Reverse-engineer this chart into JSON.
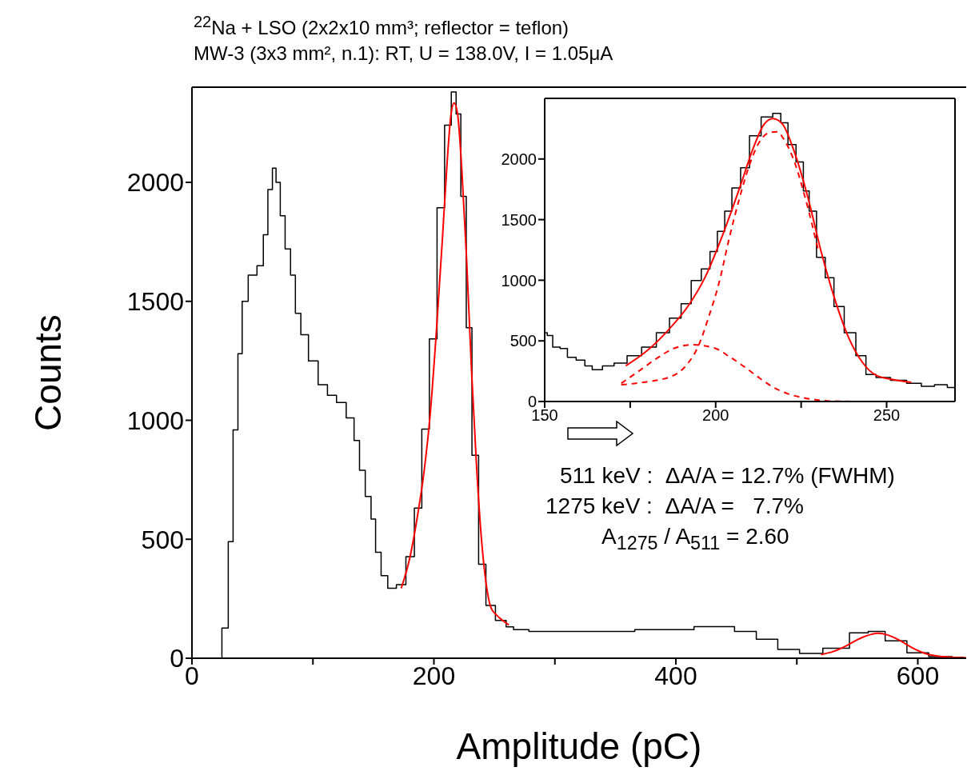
{
  "chart_data": [
    {
      "type": "step",
      "title": "$^{22}$Na + LSO (2x2x10 mm³; reflector = teflon)",
      "subtitle": "MW-3 (3x3 mm², n.1):  RT, U = 138.0V,  I = 1.05μA",
      "xlabel": "Amplitude (pC)",
      "ylabel": "Counts",
      "xlim": [
        0,
        640
      ],
      "ylim": [
        0,
        2400
      ],
      "xticks": [
        0,
        {
          "value": 100,
          "label": null
        },
        200,
        {
          "value": 300,
          "label": null
        },
        400,
        {
          "value": 500,
          "label": null
        },
        600
      ],
      "yticks": [
        0,
        500,
        1000,
        1500,
        2000
      ],
      "series": [
        {
          "color": "#000000",
          "x": [
            0,
            21.5,
            28,
            32,
            36,
            40,
            43,
            50,
            57.5,
            60.5,
            65,
            68,
            71,
            75,
            79,
            84,
            87,
            93,
            99.6,
            109,
            115,
            124,
            131,
            137,
            140,
            146.5,
            149.6,
            154,
            158.7,
            165,
            173,
            180.7,
            187,
            193,
            199.5,
            205.7,
            212,
            216.7,
            220,
            224.5,
            229,
            233.9,
            240,
            246,
            255.7,
            263.7,
            268,
            289,
            340,
            392,
            438,
            459,
            474,
            494.5,
            510,
            533,
            554,
            564,
            582,
            600,
            618,
            638.5
          ],
          "values": [
            0,
            0,
            127,
            490,
            960,
            1280,
            1500,
            1610,
            1650,
            1780,
            1970,
            2060,
            2000,
            1860,
            1720,
            1610,
            1450,
            1360,
            1250,
            1150,
            1105,
            1075,
            1010,
            915,
            790,
            680,
            585,
            445,
            347,
            294,
            309,
            427,
            631,
            963,
            1342,
            1893,
            2240,
            2380,
            2287,
            1941,
            1389,
            853,
            395,
            222,
            159,
            132,
            120,
            113,
            113,
            120,
            133,
            113,
            80,
            37,
            20,
            42,
            107,
            113,
            73,
            23,
            7,
            3
          ]
        },
        {
          "type": "line",
          "color": "#ff0000",
          "x": [
            173,
            180,
            186,
            192,
            197,
            202,
            207,
            211,
            214,
            216.7,
            219.5,
            223,
            227,
            231,
            235,
            239,
            243,
            247,
            252,
            257,
            262
          ],
          "values": [
            294,
            420,
            585,
            790,
            1030,
            1370,
            1760,
            2090,
            2280,
            2334,
            2290,
            2060,
            1680,
            1220,
            830,
            520,
            320,
            215,
            180,
            158,
            140
          ]
        },
        {
          "type": "line",
          "color": "#ff0000",
          "x": [
            520,
            530,
            540,
            550,
            558,
            567,
            575,
            585,
            595,
            605,
            615,
            625,
            640
          ],
          "values": [
            15,
            28,
            50,
            78,
            95,
            105,
            98,
            75,
            45,
            22,
            10,
            5,
            2
          ]
        }
      ],
      "annotations": [
        "511 keV :  ΔA/A = 12.7% (FWHM)",
        "1275 keV :  ΔA/A =   7.7%",
        "A$_{1275}$ / A$_{511}$ = 2.60"
      ]
    },
    {
      "type": "step",
      "xlim": [
        150,
        270
      ],
      "ylim": [
        0,
        2500
      ],
      "xticks": [
        150,
        {
          "value": 175,
          "label": null
        },
        200,
        {
          "value": 225,
          "label": null
        },
        250
      ],
      "yticks": [
        0,
        500,
        1000,
        1500,
        2000
      ],
      "series": [
        {
          "color": "#000000",
          "x": [
            150,
            151.5,
            153.2,
            155.8,
            157.5,
            160.9,
            162.6,
            165.2,
            168.6,
            172,
            176.2,
            180.5,
            184.8,
            188.2,
            191.6,
            194.1,
            197.5,
            199.2,
            201.8,
            203.5,
            206,
            208.6,
            211.2,
            215.4,
            218,
            220.1,
            222.2,
            224.8,
            226.5,
            228.2,
            230.8,
            233.3,
            235.9,
            239.3,
            242.7,
            245.2,
            248.6,
            253.7,
            258,
            262.3,
            265.7,
            269.8
          ],
          "values": [
            568,
            544,
            449,
            437,
            365,
            341,
            294,
            263,
            294,
            317,
            377,
            449,
            568,
            687,
            807,
            998,
            1093,
            1236,
            1403,
            1570,
            1761,
            1928,
            2191,
            2346,
            2377,
            2298,
            2119,
            1976,
            1737,
            1570,
            1189,
            1021,
            783,
            568,
            377,
            222,
            198,
            174,
            150,
            126,
            138,
            115
          ]
        },
        {
          "type": "line",
          "color": "#ff0000",
          "x": [
            173.7,
            180,
            186,
            192,
            197,
            202,
            207,
            211,
            214,
            216.7,
            219.5,
            223,
            227,
            231,
            235,
            239,
            243,
            247,
            252,
            257.2
          ],
          "values": [
            294,
            420,
            585,
            790,
            1030,
            1370,
            1760,
            2090,
            2280,
            2334,
            2290,
            2060,
            1680,
            1220,
            830,
            520,
            320,
            215,
            180,
            158
          ]
        },
        {
          "type": "line",
          "color": "#ff0000",
          "line_style": "dashed",
          "x": [
            172.4,
            178.8,
            187.3,
            191.6,
            195,
            198,
            201,
            204,
            207,
            210,
            213,
            216,
            218,
            220,
            223,
            226,
            230
          ],
          "values": [
            138,
            158,
            210,
            305,
            461,
            700,
            980,
            1350,
            1680,
            1960,
            2150,
            2220,
            2225,
            2160,
            1980,
            1700,
            1250
          ]
        },
        {
          "type": "line",
          "color": "#ff0000",
          "line_style": "dashed",
          "x": [
            172.4,
            178,
            183,
            188,
            193.3,
            200,
            204,
            208.6,
            213,
            217,
            221,
            225.6,
            230,
            234,
            245,
            257
          ],
          "values": [
            150,
            260,
            360,
            440,
            468,
            437,
            370,
            282,
            190,
            115,
            65,
            31,
            12,
            3,
            0,
            0
          ]
        }
      ]
    }
  ]
}
